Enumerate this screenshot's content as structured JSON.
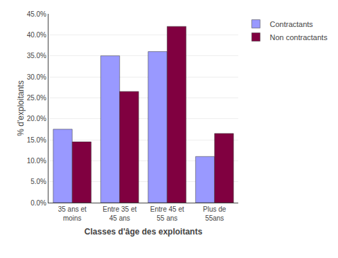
{
  "chart_data": {
    "type": "bar",
    "categories": [
      "35 ans et\nmoins",
      "Entre 35 et\n45 ans",
      "Entre 45 et\n55 ans",
      "Plus de\n55ans"
    ],
    "series": [
      {
        "name": "Contractants",
        "color": "#9999FF",
        "values": [
          17.5,
          35.0,
          36.0,
          11.0
        ]
      },
      {
        "name": "Non contractants",
        "color": "#800040",
        "values": [
          14.5,
          26.5,
          42.0,
          16.5
        ]
      }
    ],
    "xlabel": "Classes d'âge des exploitants",
    "ylabel": "% d'exploitants",
    "ylim": [
      0,
      45
    ],
    "yticks": [
      {
        "value": 0.0,
        "label": "0.0%"
      },
      {
        "value": 5.0,
        "label": "5.0%"
      },
      {
        "value": 10.0,
        "label": "10.0%"
      },
      {
        "value": 15.0,
        "label": "15.0%"
      },
      {
        "value": 20.0,
        "label": "20.0%"
      },
      {
        "value": 25.0,
        "label": "25.0%"
      },
      {
        "value": 30.0,
        "label": "30.0%"
      },
      {
        "value": 35.0,
        "label": "35.0%"
      },
      {
        "value": 40.0,
        "label": "40.0%"
      },
      {
        "value": 45.0,
        "label": "45.0%"
      }
    ],
    "grid": true,
    "legend": "right"
  }
}
